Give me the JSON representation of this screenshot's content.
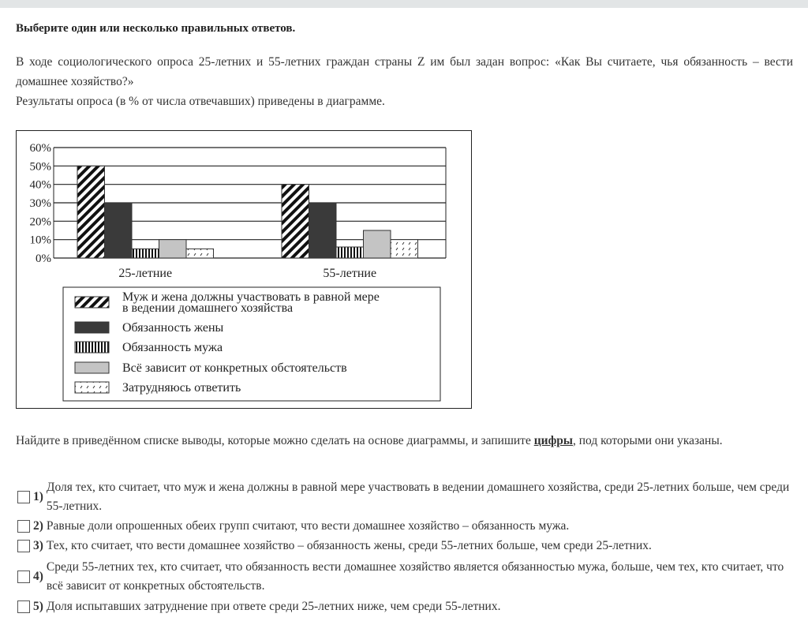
{
  "instruction": "Выберите один или несколько правильных ответов.",
  "question": {
    "line1": "В ходе социологического опроса 25-летних и 55-летних граждан страны Z им был задан вопрос: «Как Вы считаете, чья обязанность –  вести домашнее хозяйство?»",
    "line2": "Результаты опроса (в % от числа отвечавших) приведены в диаграмме."
  },
  "chart_data": {
    "type": "bar",
    "categories": [
      "25-летние",
      "55-летние"
    ],
    "yticks": [
      "0%",
      "10%",
      "20%",
      "30%",
      "40%",
      "50%",
      "60%"
    ],
    "ylim": [
      0,
      60
    ],
    "grid": true,
    "legend_position": "bottom",
    "series": [
      {
        "name": "Муж и жена должны участвовать в равной мере в ведении домашнего хозяйства",
        "values": [
          50,
          40
        ],
        "pattern": "diagonal-stripes"
      },
      {
        "name": "Обязанность жены",
        "values": [
          30,
          30
        ],
        "pattern": "solid-dark",
        "color": "#3a3a3a"
      },
      {
        "name": "Обязанность мужа",
        "values": [
          5,
          6
        ],
        "pattern": "vertical-stripes"
      },
      {
        "name": "Всё зависит от конкретных обстоятельств",
        "values": [
          10,
          15
        ],
        "pattern": "solid-light",
        "color": "#c4c4c4"
      },
      {
        "name": "Затрудняюсь ответить",
        "values": [
          5,
          10
        ],
        "pattern": "sparse-dashes"
      }
    ]
  },
  "task": {
    "before": "Найдите в приведённом списке выводы, которые можно сделать на основе диаграммы, и запишите ",
    "emph": "цифры",
    "after": ", под которыми они указаны."
  },
  "options": [
    {
      "num": "1)",
      "text": "Доля тех, кто считает, что муж и жена должны в равной мере участвовать в ведении домашнего хозяйства, среди 25-летних больше, чем среди 55-летних."
    },
    {
      "num": "2)",
      "text": "Равные доли опрошенных обеих групп считают, что вести домашнее хозяйство  –  обязанность мужа."
    },
    {
      "num": "3)",
      "text": "Тех, кто считает, что вести домашнее хозяйство  –  обязанность жены, среди 55-летних больше, чем среди 25-летних."
    },
    {
      "num": "4)",
      "text": "Среди 55-летних тех, кто считает, что обязанность вести домашнее хозяйство является обязанностью мужа, больше, чем тех, кто считает, что всё зависит от конкретных обстоятельств."
    },
    {
      "num": "5)",
      "text": "Доля испытавших затруднение при ответе среди 25-летних ниже, чем среди 55-летних."
    }
  ]
}
